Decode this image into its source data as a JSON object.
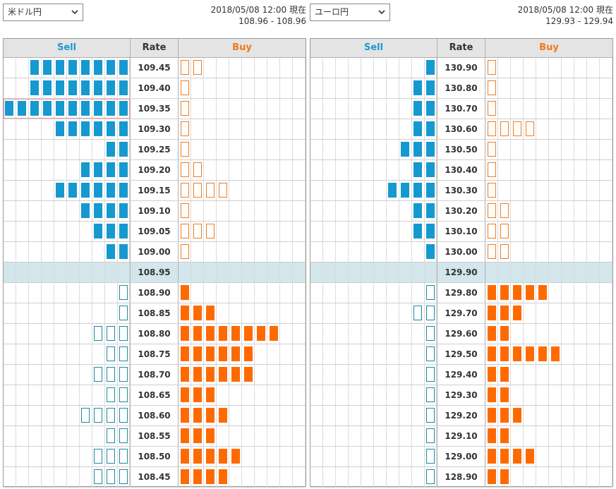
{
  "panels": [
    {
      "id": "left",
      "pair_label": "米ドル円",
      "timestamp": "2018/05/08 12:00 現在",
      "quote": "108.96 - 108.96",
      "headers": {
        "sell": "Sell",
        "rate": "Rate",
        "buy": "Buy"
      },
      "current_rate": "108.95",
      "highlight_rate": "109.35",
      "rows": [
        {
          "rate": "109.45",
          "sell": 8,
          "sell_type": "filled",
          "buy": 2,
          "buy_type": "outline"
        },
        {
          "rate": "109.40",
          "sell": 8,
          "sell_type": "filled",
          "buy": 1,
          "buy_type": "outline"
        },
        {
          "rate": "109.35",
          "sell": 10,
          "sell_type": "filled",
          "buy": 1,
          "buy_type": "outline"
        },
        {
          "rate": "109.30",
          "sell": 6,
          "sell_type": "filled",
          "buy": 1,
          "buy_type": "outline"
        },
        {
          "rate": "109.25",
          "sell": 2,
          "sell_type": "filled",
          "buy": 1,
          "buy_type": "outline"
        },
        {
          "rate": "109.20",
          "sell": 4,
          "sell_type": "filled",
          "buy": 2,
          "buy_type": "outline"
        },
        {
          "rate": "109.15",
          "sell": 6,
          "sell_type": "filled",
          "buy": 4,
          "buy_type": "outline"
        },
        {
          "rate": "109.10",
          "sell": 4,
          "sell_type": "filled",
          "buy": 1,
          "buy_type": "outline"
        },
        {
          "rate": "109.05",
          "sell": 3,
          "sell_type": "filled",
          "buy": 3,
          "buy_type": "outline"
        },
        {
          "rate": "109.00",
          "sell": 2,
          "sell_type": "filled",
          "buy": 1,
          "buy_type": "outline"
        },
        {
          "rate": "108.95",
          "sell": 0,
          "sell_type": "filled",
          "buy": 0,
          "buy_type": "outline"
        },
        {
          "rate": "108.90",
          "sell": 1,
          "sell_type": "outline",
          "buy": 1,
          "buy_type": "filled"
        },
        {
          "rate": "108.85",
          "sell": 1,
          "sell_type": "outline",
          "buy": 3,
          "buy_type": "filled"
        },
        {
          "rate": "108.80",
          "sell": 3,
          "sell_type": "outline",
          "buy": 8,
          "buy_type": "filled"
        },
        {
          "rate": "108.75",
          "sell": 2,
          "sell_type": "outline",
          "buy": 6,
          "buy_type": "filled"
        },
        {
          "rate": "108.70",
          "sell": 3,
          "sell_type": "outline",
          "buy": 6,
          "buy_type": "filled"
        },
        {
          "rate": "108.65",
          "sell": 2,
          "sell_type": "outline",
          "buy": 3,
          "buy_type": "filled"
        },
        {
          "rate": "108.60",
          "sell": 4,
          "sell_type": "outline",
          "buy": 4,
          "buy_type": "filled"
        },
        {
          "rate": "108.55",
          "sell": 2,
          "sell_type": "outline",
          "buy": 3,
          "buy_type": "filled"
        },
        {
          "rate": "108.50",
          "sell": 3,
          "sell_type": "outline",
          "buy": 5,
          "buy_type": "filled"
        },
        {
          "rate": "108.45",
          "sell": 3,
          "sell_type": "outline",
          "buy": 4,
          "buy_type": "filled"
        }
      ]
    },
    {
      "id": "right",
      "pair_label": "ユーロ円",
      "timestamp": "2018/05/08 12:00 現在",
      "quote": "129.93 - 129.94",
      "headers": {
        "sell": "Sell",
        "rate": "Rate",
        "buy": "Buy"
      },
      "current_rate": "129.90",
      "highlight_rate": "",
      "rows": [
        {
          "rate": "130.90",
          "sell": 1,
          "sell_type": "filled",
          "buy": 1,
          "buy_type": "outline"
        },
        {
          "rate": "130.80",
          "sell": 2,
          "sell_type": "filled",
          "buy": 1,
          "buy_type": "outline"
        },
        {
          "rate": "130.70",
          "sell": 2,
          "sell_type": "filled",
          "buy": 1,
          "buy_type": "outline"
        },
        {
          "rate": "130.60",
          "sell": 2,
          "sell_type": "filled",
          "buy": 4,
          "buy_type": "outline"
        },
        {
          "rate": "130.50",
          "sell": 3,
          "sell_type": "filled",
          "buy": 1,
          "buy_type": "outline"
        },
        {
          "rate": "130.40",
          "sell": 2,
          "sell_type": "filled",
          "buy": 1,
          "buy_type": "outline"
        },
        {
          "rate": "130.30",
          "sell": 4,
          "sell_type": "filled",
          "buy": 1,
          "buy_type": "outline"
        },
        {
          "rate": "130.20",
          "sell": 2,
          "sell_type": "filled",
          "buy": 2,
          "buy_type": "outline"
        },
        {
          "rate": "130.10",
          "sell": 2,
          "sell_type": "filled",
          "buy": 2,
          "buy_type": "outline"
        },
        {
          "rate": "130.00",
          "sell": 1,
          "sell_type": "filled",
          "buy": 2,
          "buy_type": "outline"
        },
        {
          "rate": "129.90",
          "sell": 0,
          "sell_type": "filled",
          "buy": 0,
          "buy_type": "outline"
        },
        {
          "rate": "129.80",
          "sell": 1,
          "sell_type": "outline",
          "buy": 5,
          "buy_type": "filled"
        },
        {
          "rate": "129.70",
          "sell": 2,
          "sell_type": "outline",
          "buy": 3,
          "buy_type": "filled"
        },
        {
          "rate": "129.60",
          "sell": 1,
          "sell_type": "outline",
          "buy": 2,
          "buy_type": "filled"
        },
        {
          "rate": "129.50",
          "sell": 1,
          "sell_type": "outline",
          "buy": 6,
          "buy_type": "filled"
        },
        {
          "rate": "129.40",
          "sell": 1,
          "sell_type": "outline",
          "buy": 2,
          "buy_type": "filled"
        },
        {
          "rate": "129.30",
          "sell": 1,
          "sell_type": "outline",
          "buy": 2,
          "buy_type": "filled"
        },
        {
          "rate": "129.20",
          "sell": 1,
          "sell_type": "outline",
          "buy": 3,
          "buy_type": "filled"
        },
        {
          "rate": "129.10",
          "sell": 1,
          "sell_type": "outline",
          "buy": 2,
          "buy_type": "filled"
        },
        {
          "rate": "129.00",
          "sell": 1,
          "sell_type": "outline",
          "buy": 4,
          "buy_type": "filled"
        },
        {
          "rate": "128.90",
          "sell": 1,
          "sell_type": "outline",
          "buy": 2,
          "buy_type": "filled"
        }
      ]
    }
  ],
  "colors": {
    "sell": "#1599cf",
    "buy": "#ff6a00",
    "current_row": "#d2e6ec",
    "highlight_border": "#e79aa5"
  }
}
